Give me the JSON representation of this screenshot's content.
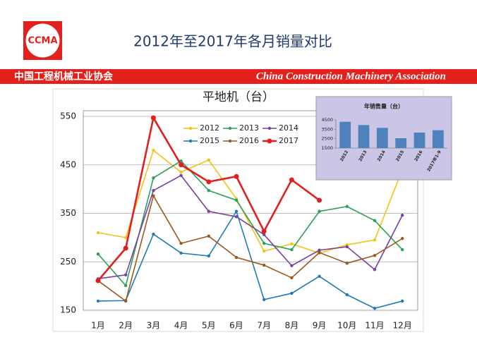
{
  "header": {
    "logo": "CCMA",
    "title": "2012年至2017年各月销量对比",
    "org_cn": "中国工程机械工业协会",
    "org_en": "China Construction Machinery Association"
  },
  "chart_data": [
    {
      "type": "line",
      "title": "平地机（台）",
      "categories": [
        "1月",
        "2月",
        "3月",
        "4月",
        "5月",
        "6月",
        "7月",
        "8月",
        "9月",
        "10月",
        "11月",
        "12月"
      ],
      "ylim": [
        150,
        550
      ],
      "yticks": [
        150,
        250,
        350,
        450,
        550
      ],
      "grid": true,
      "legend": "top-center",
      "series": [
        {
          "name": "2012",
          "color": "#f2c314",
          "values": [
            310,
            300,
            480,
            435,
            460,
            380,
            272,
            287,
            268,
            285,
            295,
            440
          ]
        },
        {
          "name": "2013",
          "color": "#2ca05a",
          "values": [
            266,
            201,
            423,
            458,
            397,
            377,
            288,
            275,
            354,
            364,
            335,
            275
          ]
        },
        {
          "name": "2014",
          "color": "#7a3fa0",
          "values": [
            215,
            223,
            397,
            428,
            354,
            343,
            306,
            242,
            274,
            281,
            234,
            346
          ]
        },
        {
          "name": "2015",
          "color": "#1f7ab8",
          "values": [
            169,
            170,
            307,
            268,
            262,
            354,
            172,
            185,
            220,
            182,
            154,
            169
          ]
        },
        {
          "name": "2016",
          "color": "#9a5a1e",
          "values": [
            211,
            169,
            386,
            288,
            303,
            259,
            243,
            217,
            269,
            247,
            263,
            298
          ]
        },
        {
          "name": "2017",
          "color": "#e0201f",
          "values": [
            211,
            278,
            547,
            450,
            415,
            426,
            313,
            419,
            377,
            null,
            null,
            null
          ]
        }
      ]
    },
    {
      "type": "bar",
      "title": "年销售量（台）",
      "categories": [
        "2012",
        "2013",
        "2014",
        "2015",
        "2016",
        "2017年1-9"
      ],
      "values": [
        4300,
        3950,
        3650,
        2550,
        3150,
        3400
      ],
      "color": "#4f81bd",
      "ylim": [
        1500,
        4500
      ],
      "yticks": [
        1500,
        2500,
        3500,
        4500
      ],
      "grid": false
    }
  ]
}
